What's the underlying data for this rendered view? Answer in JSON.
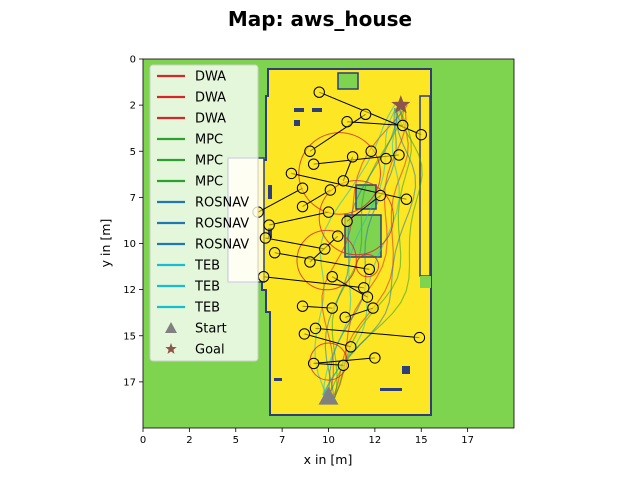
{
  "chart_data": {
    "type": "scatter",
    "title": "Map: aws_house",
    "xlabel": "x in [m]",
    "ylabel": "y in [m]",
    "xlim": [
      0,
      20
    ],
    "ylim": [
      20,
      0
    ],
    "y_inverted": true,
    "xticks": [
      "0",
      "2",
      "5",
      "7",
      "10",
      "12",
      "15",
      "17"
    ],
    "xtick_values": [
      0,
      2.5,
      5,
      7.5,
      10,
      12.5,
      15,
      17.5
    ],
    "yticks": [
      "0",
      "2",
      "5",
      "7",
      "10",
      "12",
      "15",
      "17"
    ],
    "ytick_values": [
      0,
      2.5,
      5,
      7.5,
      10,
      12.5,
      15,
      17.5
    ],
    "grid": false,
    "legend_placement": "top-left",
    "colors": {
      "background_green": "#7ed44e",
      "floor_yellow": "#fde725",
      "wall_navy": "#2c3e7c",
      "DWA": "#d62728",
      "MPC": "#2ca02c",
      "ROSNAV": "#1f77b4",
      "TEB": "#17becf",
      "start": "#808080",
      "goal": "#8c564b"
    },
    "legend": [
      {
        "label": "DWA",
        "color": "#d62728",
        "marker": "line"
      },
      {
        "label": "DWA",
        "color": "#d62728",
        "marker": "line"
      },
      {
        "label": "DWA",
        "color": "#d62728",
        "marker": "line"
      },
      {
        "label": "MPC",
        "color": "#2ca02c",
        "marker": "line"
      },
      {
        "label": "MPC",
        "color": "#2ca02c",
        "marker": "line"
      },
      {
        "label": "MPC",
        "color": "#2ca02c",
        "marker": "line"
      },
      {
        "label": "ROSNAV",
        "color": "#1f77b4",
        "marker": "line"
      },
      {
        "label": "ROSNAV",
        "color": "#1f77b4",
        "marker": "line"
      },
      {
        "label": "ROSNAV",
        "color": "#1f77b4",
        "marker": "line"
      },
      {
        "label": "TEB",
        "color": "#17becf",
        "marker": "line"
      },
      {
        "label": "TEB",
        "color": "#17becf",
        "marker": "line"
      },
      {
        "label": "TEB",
        "color": "#17becf",
        "marker": "line"
      },
      {
        "label": "Start",
        "color": "#808080",
        "marker": "triangle"
      },
      {
        "label": "Goal",
        "color": "#8c564b",
        "marker": "star"
      }
    ],
    "start": {
      "x": 10.0,
      "y": 18.3
    },
    "goal": {
      "x": 13.9,
      "y": 2.5
    },
    "obstacles": [
      {
        "x": 9.5,
        "y": 1.8
      },
      {
        "x": 11.0,
        "y": 3.4
      },
      {
        "x": 12.0,
        "y": 3.0
      },
      {
        "x": 14.0,
        "y": 3.6
      },
      {
        "x": 15.0,
        "y": 4.1
      },
      {
        "x": 9.0,
        "y": 5.0
      },
      {
        "x": 9.2,
        "y": 5.7
      },
      {
        "x": 11.3,
        "y": 5.3
      },
      {
        "x": 12.3,
        "y": 5.0
      },
      {
        "x": 13.1,
        "y": 5.4
      },
      {
        "x": 13.8,
        "y": 5.2
      },
      {
        "x": 8.0,
        "y": 6.2
      },
      {
        "x": 10.8,
        "y": 6.6
      },
      {
        "x": 8.6,
        "y": 7.0
      },
      {
        "x": 10.1,
        "y": 7.1
      },
      {
        "x": 12.8,
        "y": 7.4
      },
      {
        "x": 14.2,
        "y": 7.6
      },
      {
        "x": 6.2,
        "y": 8.3
      },
      {
        "x": 8.6,
        "y": 8.0
      },
      {
        "x": 10.0,
        "y": 8.3
      },
      {
        "x": 11.0,
        "y": 8.8
      },
      {
        "x": 6.8,
        "y": 9.0
      },
      {
        "x": 6.6,
        "y": 9.7
      },
      {
        "x": 10.5,
        "y": 9.6
      },
      {
        "x": 9.8,
        "y": 10.3
      },
      {
        "x": 7.1,
        "y": 10.5
      },
      {
        "x": 9.0,
        "y": 11.0
      },
      {
        "x": 12.2,
        "y": 11.4
      },
      {
        "x": 6.5,
        "y": 11.8
      },
      {
        "x": 10.2,
        "y": 11.8
      },
      {
        "x": 11.9,
        "y": 12.4
      },
      {
        "x": 12.1,
        "y": 12.9
      },
      {
        "x": 12.4,
        "y": 13.5
      },
      {
        "x": 8.6,
        "y": 13.4
      },
      {
        "x": 10.2,
        "y": 13.5
      },
      {
        "x": 10.9,
        "y": 14.0
      },
      {
        "x": 9.3,
        "y": 14.6
      },
      {
        "x": 8.7,
        "y": 14.9
      },
      {
        "x": 14.9,
        "y": 15.1
      },
      {
        "x": 11.2,
        "y": 15.6
      },
      {
        "x": 12.5,
        "y": 16.2
      },
      {
        "x": 9.2,
        "y": 16.5
      },
      {
        "x": 10.8,
        "y": 16.6
      }
    ],
    "obstacle_links": [
      [
        0,
        4
      ],
      [
        1,
        3
      ],
      [
        2,
        5
      ],
      [
        6,
        10
      ],
      [
        7,
        12
      ],
      [
        11,
        16
      ],
      [
        13,
        17
      ],
      [
        14,
        18
      ],
      [
        15,
        20
      ],
      [
        19,
        21
      ],
      [
        22,
        24
      ],
      [
        23,
        26
      ],
      [
        25,
        27
      ],
      [
        28,
        30
      ],
      [
        29,
        31
      ],
      [
        32,
        35
      ],
      [
        33,
        34
      ],
      [
        36,
        38
      ],
      [
        37,
        39
      ],
      [
        40,
        41
      ],
      [
        42,
        41
      ]
    ]
  }
}
